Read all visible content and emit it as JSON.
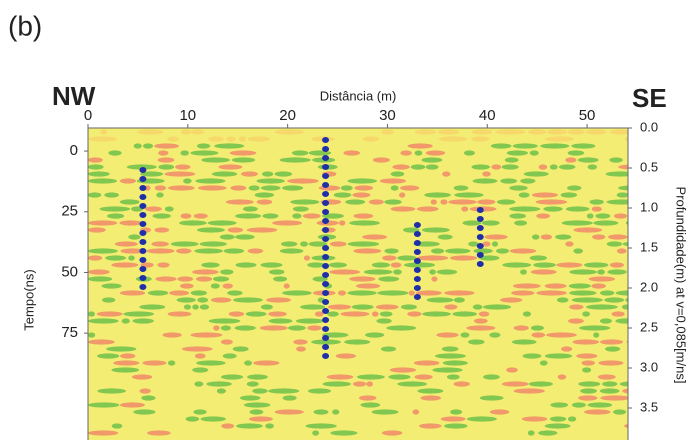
{
  "chart_data": {
    "type": "radargram",
    "panel_label": "(b)",
    "left_label": "NW",
    "right_label": "SE",
    "xlabel": "Distância (m)",
    "ylabel": "Tempo(ns)",
    "y2label": "Profundidade(m) at v=0,085[m/ns]",
    "xlim": [
      0,
      54.1
    ],
    "xticks": [
      0,
      10,
      20,
      30,
      40,
      50
    ],
    "ylim": [
      -9.5,
      119
    ],
    "yticks": [
      0,
      25,
      50,
      75
    ],
    "y2lim": [
      0,
      3.9
    ],
    "y2ticks": [
      {
        "value": 0,
        "label": "0.0"
      },
      0.5,
      {
        "value": 1,
        "label": "1.0"
      },
      1.5,
      {
        "value": 2,
        "label": "2.0"
      },
      2.5,
      {
        "value": 3,
        "label": "3.0"
      },
      3.5
    ]
  }
}
